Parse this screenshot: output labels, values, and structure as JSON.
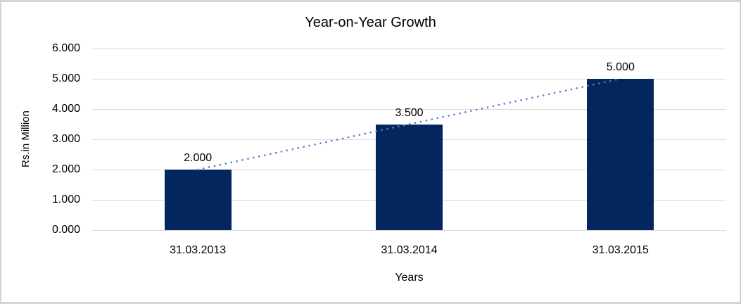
{
  "chart_data": {
    "type": "bar",
    "title": "Year-on-Year Growth",
    "xlabel": "Years",
    "ylabel": "Rs.in Million",
    "categories": [
      "31.03.2013",
      "31.03.2014",
      "31.03.2015"
    ],
    "values": [
      2.0,
      3.5,
      5.0
    ],
    "data_labels": [
      "2.000",
      "3.500",
      "5.000"
    ],
    "ytick_labels": [
      "0.000",
      "1.000",
      "2.000",
      "3.000",
      "4.000",
      "5.000",
      "6.000"
    ],
    "ylim": [
      0,
      6
    ],
    "grid": "horizontal",
    "legend": "none",
    "trendline": {
      "type": "linear",
      "style": "dotted",
      "start_value": 2.0,
      "end_value": 5.0,
      "color": "#4c82c4"
    },
    "colors": {
      "bar": "#04265e",
      "gridline": "#d9d9d9",
      "text": "#000000",
      "background": "#ffffff",
      "frame_border": "#d4d4d4"
    }
  }
}
